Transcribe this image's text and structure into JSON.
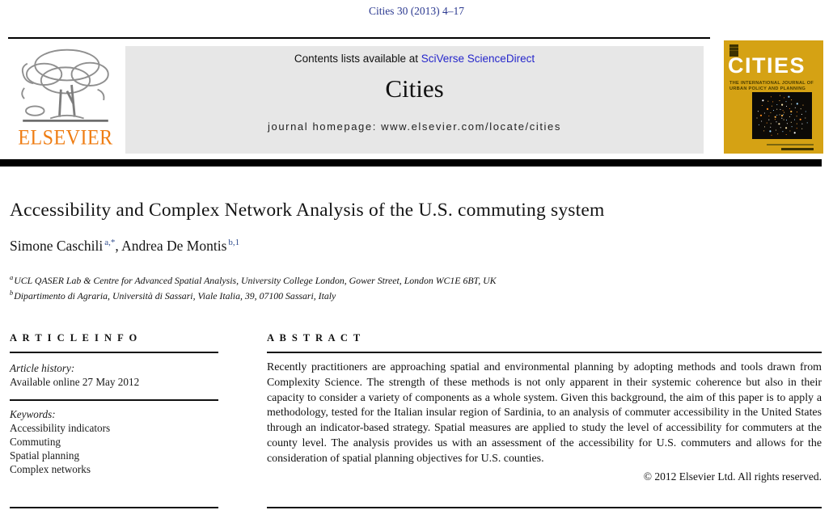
{
  "citation": "Cities 30 (2013) 4–17",
  "header": {
    "contents_prefix": "Contents lists available at ",
    "contents_link": "SciVerse ScienceDirect",
    "journal_title": "Cities",
    "homepage": "journal homepage: www.elsevier.com/locate/cities",
    "elsevier_wordmark": "ELSEVIER"
  },
  "cover": {
    "title": "CITIES",
    "subtitle_line1": "THE INTERNATIONAL JOURNAL OF",
    "subtitle_line2": "URBAN POLICY AND PLANNING",
    "background_color": "#d5a214"
  },
  "article": {
    "title": "Accessibility and Complex Network Analysis of the U.S. commuting system",
    "authors": [
      {
        "name": "Simone Caschili",
        "sup": "a,*"
      },
      {
        "name": "Andrea De Montis",
        "sup": "b,1"
      }
    ],
    "author_separator": ", ",
    "affiliations": [
      {
        "marker": "a",
        "text": "UCL QASER Lab & Centre for Advanced Spatial Analysis, University College London, Gower Street, London WC1E 6BT, UK"
      },
      {
        "marker": "b",
        "text": "Dipartimento di Agraria, Università di Sassari, Viale Italia, 39, 07100 Sassari, Italy"
      }
    ]
  },
  "article_info": {
    "heading": "A R T I C L E   I N F O",
    "history_label": "Article history:",
    "history_value": "Available online 27 May 2012",
    "keywords_label": "Keywords:",
    "keywords": [
      "Accessibility indicators",
      "Commuting",
      "Spatial planning",
      "Complex networks"
    ]
  },
  "abstract": {
    "heading": "A B S T R A C T",
    "body": "Recently practitioners are approaching spatial and environmental planning by adopting methods and tools drawn from Complexity Science. The strength of these methods is not only apparent in their systemic coherence but also in their capacity to consider a variety of components as a whole system. Given this background, the aim of this paper is to apply a methodology, tested for the Italian insular region of Sardinia, to an analysis of commuter accessibility in the United States through an indicator-based strategy. Spatial measures are applied to study the level of accessibility for commuters at the county level. The analysis provides us with an assessment of the accessibility for U.S. commuters and allows for the consideration of spatial planning objectives for U.S. counties.",
    "copyright": "© 2012 Elsevier Ltd. All rights reserved."
  },
  "colors": {
    "citation_blue": "#2b3990",
    "link_blue": "#2526cb",
    "elsevier_orange": "#ef7d13",
    "cover_gold": "#d5a214",
    "header_gray": "#e7e7e7"
  }
}
